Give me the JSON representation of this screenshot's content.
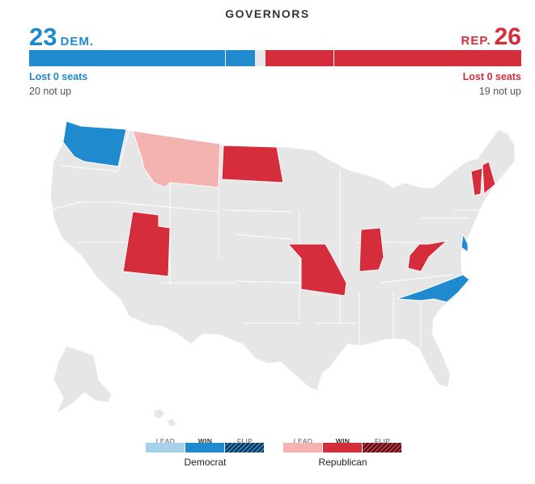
{
  "title": "GOVERNORS",
  "dem": {
    "count": "23",
    "label": "DEM.",
    "lost": "Lost 0 seats",
    "not_up": "20 not up",
    "color": "#1f8ace"
  },
  "rep": {
    "count": "26",
    "label": "REP.",
    "lost": "Lost 0 seats",
    "not_up": "19 not up",
    "color": "#d52d3c"
  },
  "bar": {
    "total": 50,
    "dem_won": 3,
    "dem_not_up": 20,
    "rep_won": 7,
    "rep_not_up": 19
  },
  "states": {
    "democrat_win": [
      "Washington",
      "Delaware",
      "North Carolina"
    ],
    "republican_win": [
      "North Dakota",
      "Utah",
      "Missouri",
      "Indiana",
      "West Virginia",
      "Vermont",
      "New Hampshire"
    ],
    "republican_lead": [
      "Montana"
    ]
  },
  "legend": {
    "dem": {
      "lead": "LEAD",
      "win": "WIN",
      "flip": "FLIP",
      "name": "Democrat",
      "lead_color": "#a7d0ea",
      "win_color": "#1f8ace"
    },
    "rep": {
      "lead": "LEAD",
      "win": "WIN",
      "flip": "FLIP",
      "name": "Republican",
      "lead_color": "#f4b3b1",
      "win_color": "#d52d3c"
    }
  },
  "colors": {
    "neutral": "#e6e6e6",
    "border": "#ffffff"
  }
}
